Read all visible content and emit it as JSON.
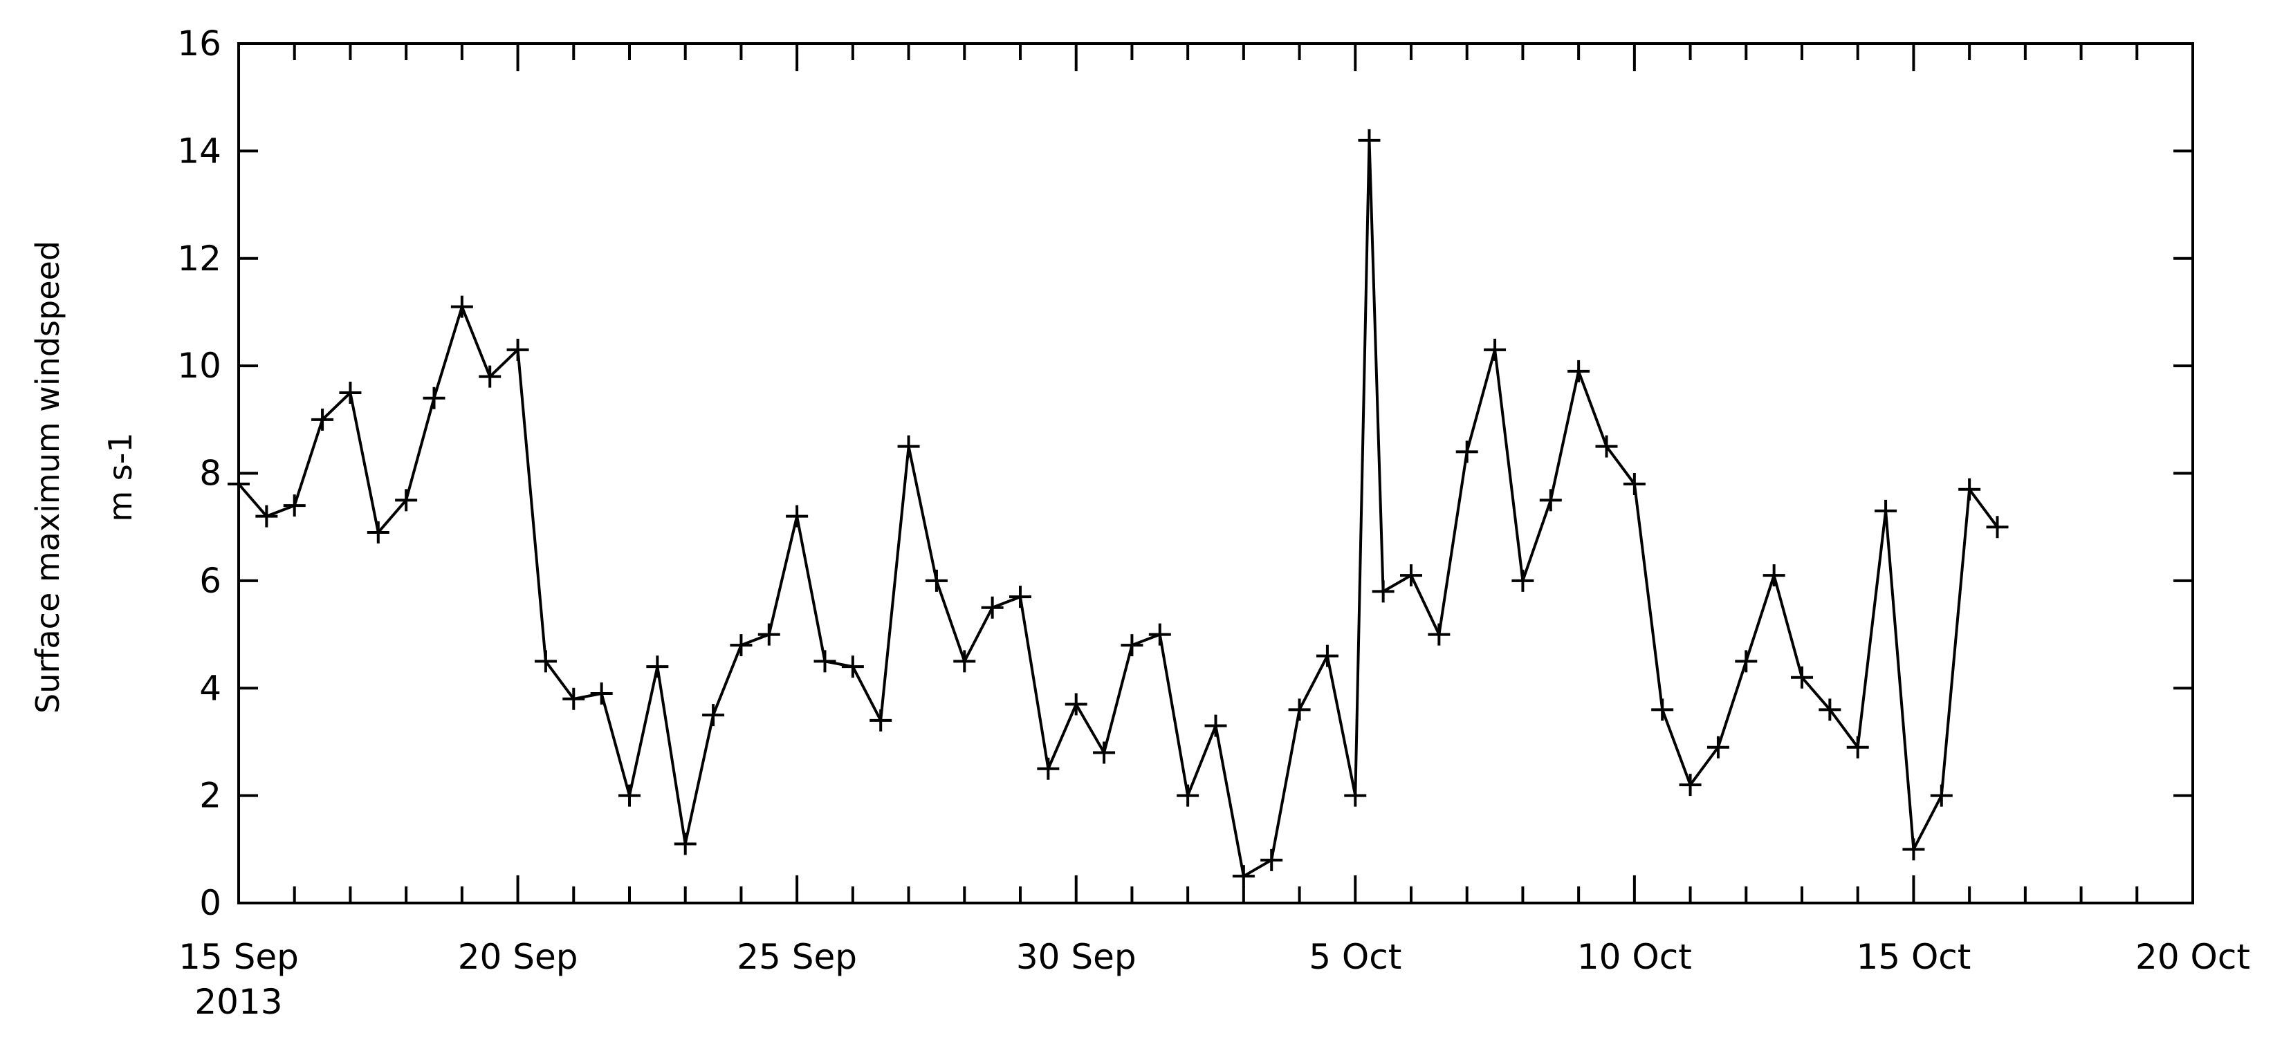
{
  "chart_data": {
    "type": "line",
    "ylabel": "Surface maximum windspeed",
    "yunits": "m s-1",
    "marker": "+",
    "grid": false,
    "line_color": "#000000",
    "xlim": [
      "2013-09-15",
      "2013-10-20"
    ],
    "ylim": [
      0,
      16
    ],
    "y_ticks": [
      "0",
      "2",
      "4",
      "6",
      "8",
      "10",
      "12",
      "14",
      "16"
    ],
    "x_ticks": [
      {
        "date": "2013-09-15",
        "label": "15 Sep",
        "sublabel": "2013"
      },
      {
        "date": "2013-09-20",
        "label": "20 Sep"
      },
      {
        "date": "2013-09-25",
        "label": "25 Sep"
      },
      {
        "date": "2013-09-30",
        "label": "30 Sep"
      },
      {
        "date": "2013-10-05",
        "label": "5 Oct"
      },
      {
        "date": "2013-10-10",
        "label": "10 Oct"
      },
      {
        "date": "2013-10-15",
        "label": "15 Oct"
      },
      {
        "date": "2013-10-20",
        "label": "20 Oct"
      }
    ],
    "x": [
      "2013-09-15T00:00",
      "2013-09-15T12:00",
      "2013-09-16T00:00",
      "2013-09-16T12:00",
      "2013-09-17T00:00",
      "2013-09-17T12:00",
      "2013-09-18T00:00",
      "2013-09-18T12:00",
      "2013-09-19T00:00",
      "2013-09-19T12:00",
      "2013-09-20T00:00",
      "2013-09-20T12:00",
      "2013-09-21T00:00",
      "2013-09-21T12:00",
      "2013-09-22T00:00",
      "2013-09-22T12:00",
      "2013-09-23T00:00",
      "2013-09-23T12:00",
      "2013-09-24T00:00",
      "2013-09-24T12:00",
      "2013-09-25T00:00",
      "2013-09-25T12:00",
      "2013-09-26T00:00",
      "2013-09-26T12:00",
      "2013-09-27T00:00",
      "2013-09-27T12:00",
      "2013-09-28T00:00",
      "2013-09-28T12:00",
      "2013-09-29T00:00",
      "2013-09-29T12:00",
      "2013-09-30T00:00",
      "2013-09-30T12:00",
      "2013-10-01T00:00",
      "2013-10-01T12:00",
      "2013-10-02T00:00",
      "2013-10-02T12:00",
      "2013-10-03T00:00",
      "2013-10-03T12:00",
      "2013-10-04T00:00",
      "2013-10-04T12:00",
      "2013-10-05T00:00",
      "2013-10-05T06:00",
      "2013-10-05T12:00",
      "2013-10-06T00:00",
      "2013-10-06T12:00",
      "2013-10-07T00:00",
      "2013-10-07T12:00",
      "2013-10-08T00:00",
      "2013-10-08T12:00",
      "2013-10-09T00:00",
      "2013-10-09T12:00",
      "2013-10-10T00:00",
      "2013-10-10T12:00",
      "2013-10-11T00:00",
      "2013-10-11T12:00",
      "2013-10-12T00:00",
      "2013-10-12T12:00",
      "2013-10-13T00:00",
      "2013-10-13T12:00",
      "2013-10-14T00:00",
      "2013-10-14T12:00",
      "2013-10-15T00:00",
      "2013-10-15T12:00",
      "2013-10-16T00:00",
      "2013-10-16T12:00"
    ],
    "y": [
      7.8,
      7.2,
      7.4,
      9.0,
      9.5,
      6.9,
      7.5,
      9.4,
      11.1,
      9.8,
      10.3,
      4.5,
      3.8,
      3.9,
      2.0,
      4.4,
      1.1,
      3.5,
      4.8,
      5.0,
      7.2,
      4.5,
      4.4,
      3.4,
      8.5,
      6.0,
      4.5,
      5.5,
      5.7,
      2.5,
      3.7,
      2.8,
      4.8,
      5.0,
      2.0,
      3.3,
      0.5,
      0.8,
      3.6,
      4.6,
      2.0,
      14.2,
      5.8,
      6.1,
      5.0,
      8.4,
      10.3,
      6.0,
      7.5,
      9.9,
      8.5,
      7.8,
      3.6,
      2.2,
      2.9,
      4.5,
      6.1,
      4.2,
      3.6,
      2.9,
      7.3,
      1.0,
      2.0,
      7.7,
      7.0
    ]
  }
}
